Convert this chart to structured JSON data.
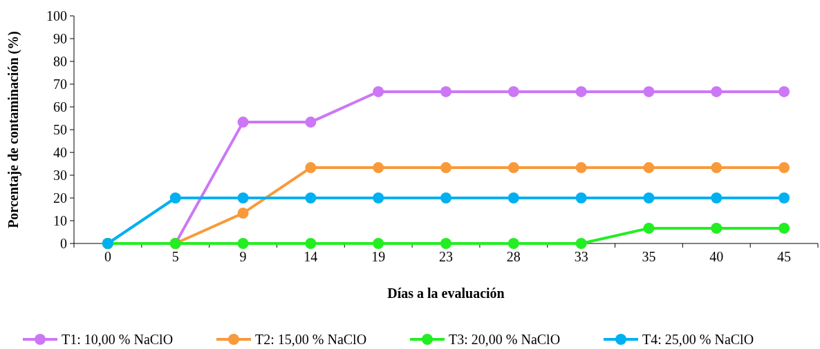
{
  "chart_data": {
    "type": "line",
    "xlabel": "Días a la evaluación",
    "ylabel": "Porcentaje de contaminación (%)",
    "categories": [
      "0",
      "5",
      "9",
      "14",
      "19",
      "23",
      "28",
      "33",
      "35",
      "40",
      "45"
    ],
    "series": [
      {
        "name": "T1: 10,00 % NaClO",
        "color": "#cc77f5",
        "values": [
          0,
          0,
          53.3,
          53.3,
          66.7,
          66.7,
          66.7,
          66.7,
          66.7,
          66.7,
          66.7
        ]
      },
      {
        "name": "T2: 15,00 % NaClO",
        "color": "#f89a3a",
        "values": [
          0,
          0,
          13.3,
          33.3,
          33.3,
          33.3,
          33.3,
          33.3,
          33.3,
          33.3,
          33.3
        ]
      },
      {
        "name": "T3: 20,00 % NaClO",
        "color": "#22ee22",
        "values": [
          0,
          0,
          0,
          0,
          0,
          0,
          0,
          0,
          6.7,
          6.7,
          6.7
        ]
      },
      {
        "name": "T4: 25,00 % NaClO",
        "color": "#00b0f0",
        "values": [
          0,
          20,
          20,
          20,
          20,
          20,
          20,
          20,
          20,
          20,
          20
        ]
      }
    ],
    "ylim": [
      0,
      100
    ],
    "yticks": [
      0,
      10,
      20,
      30,
      40,
      50,
      60,
      70,
      80,
      90,
      100
    ],
    "grid": false,
    "legend": "bottom",
    "marker": "circle",
    "line_style": "solid"
  }
}
